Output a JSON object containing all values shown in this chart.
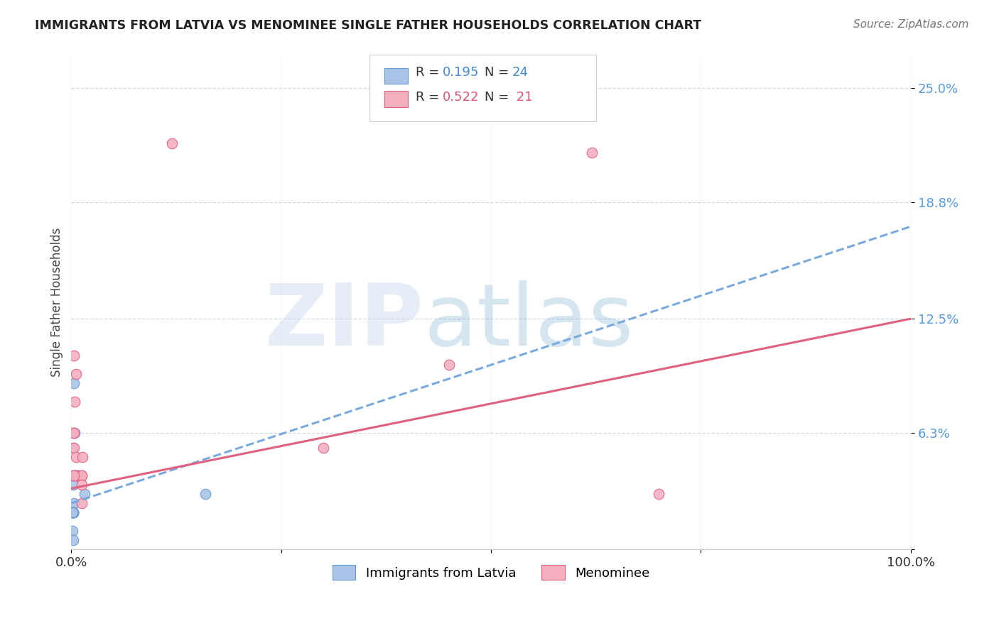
{
  "title": "IMMIGRANTS FROM LATVIA VS MENOMINEE SINGLE FATHER HOUSEHOLDS CORRELATION CHART",
  "source": "Source: ZipAtlas.com",
  "ylabel": "Single Father Households",
  "ytick_vals": [
    0.0,
    0.063,
    0.125,
    0.188,
    0.25
  ],
  "ytick_labels": [
    "",
    "6.3%",
    "12.5%",
    "18.8%",
    "25.0%"
  ],
  "xtick_vals": [
    0.0,
    0.25,
    0.5,
    0.75,
    1.0
  ],
  "xlim": [
    0.0,
    1.0
  ],
  "ylim": [
    0.0,
    0.268
  ],
  "blue_scatter_x": [
    0.001,
    0.002,
    0.003,
    0.003,
    0.004,
    0.004,
    0.005,
    0.006,
    0.007,
    0.002,
    0.002,
    0.003,
    0.001,
    0.002,
    0.002,
    0.002,
    0.001,
    0.001,
    0.002,
    0.001,
    0.001,
    0.001,
    0.016,
    0.16
  ],
  "blue_scatter_y": [
    0.04,
    0.055,
    0.09,
    0.04,
    0.063,
    0.04,
    0.04,
    0.04,
    0.04,
    0.035,
    0.02,
    0.025,
    0.02,
    0.02,
    0.02,
    0.02,
    0.02,
    0.01,
    0.005,
    0.02,
    0.02,
    0.02,
    0.03,
    0.03
  ],
  "pink_scatter_x": [
    0.002,
    0.003,
    0.004,
    0.003,
    0.003,
    0.006,
    0.007,
    0.008,
    0.012,
    0.012,
    0.012,
    0.013,
    0.006,
    0.012,
    0.003,
    0.003,
    0.12,
    0.3,
    0.45,
    0.62,
    0.7
  ],
  "pink_scatter_y": [
    0.063,
    0.063,
    0.08,
    0.055,
    0.04,
    0.05,
    0.04,
    0.04,
    0.04,
    0.04,
    0.035,
    0.05,
    0.095,
    0.025,
    0.105,
    0.04,
    0.22,
    0.055,
    0.1,
    0.215,
    0.03
  ],
  "blue_line_x0": 0.0,
  "blue_line_x1": 1.0,
  "blue_line_y0": 0.025,
  "blue_line_y1": 0.175,
  "pink_line_x0": 0.0,
  "pink_line_x1": 1.0,
  "pink_line_y0": 0.033,
  "pink_line_y1": 0.125,
  "blue_fill": "#aac4e8",
  "pink_fill": "#f5b0c0",
  "blue_edge": "#6699cc",
  "pink_edge": "#e06080",
  "blue_line_color": "#7aaadd",
  "pink_line_color": "#e06080",
  "scatter_size": 110,
  "background_color": "#ffffff",
  "grid_color": "#c8d4e0",
  "watermark_zip": "ZIP",
  "watermark_atlas": "atlas",
  "legend_r1": "R = 0.195",
  "legend_n1": "N = 24",
  "legend_r2": "R = 0.522",
  "legend_n2": "N =  21",
  "label1": "Immigrants from Latvia",
  "label2": "Menominee"
}
